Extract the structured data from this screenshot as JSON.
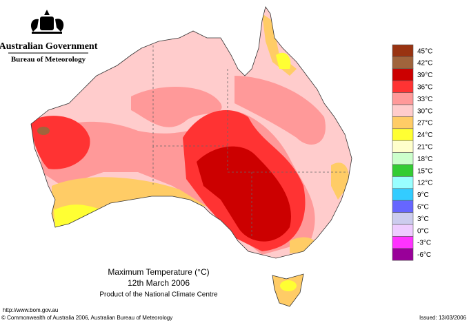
{
  "header": {
    "government": "Australian Government",
    "bureau": "Bureau of Meteorology"
  },
  "map": {
    "title": "Maximum Temperature (°C)",
    "date": "12th March 2006",
    "product": "Product of the National Climate Centre"
  },
  "legend": [
    {
      "label": "45°C",
      "color": "#993311"
    },
    {
      "label": "42°C",
      "color": "#a0643c"
    },
    {
      "label": "39°C",
      "color": "#cc0000"
    },
    {
      "label": "36°C",
      "color": "#ff3333"
    },
    {
      "label": "33°C",
      "color": "#ff9999"
    },
    {
      "label": "30°C",
      "color": "#ffcccc"
    },
    {
      "label": "27°C",
      "color": "#ffcc66"
    },
    {
      "label": "24°C",
      "color": "#ffff33"
    },
    {
      "label": "21°C",
      "color": "#ffffcc"
    },
    {
      "label": "18°C",
      "color": "#ccffcc"
    },
    {
      "label": "15°C",
      "color": "#33cc33"
    },
    {
      "label": "12°C",
      "color": "#99ffff"
    },
    {
      "label": "9°C",
      "color": "#33ccff"
    },
    {
      "label": "6°C",
      "color": "#6666ff"
    },
    {
      "label": "3°C",
      "color": "#ccccee"
    },
    {
      "label": "0°C",
      "color": "#eeccff"
    },
    {
      "label": "-3°C",
      "color": "#ff33ff"
    },
    {
      "label": "-6°C",
      "color": "#990099"
    }
  ],
  "footer": {
    "url": "http://www.bom.gov.au",
    "copyright": "© Commonwealth of Australia 2006, Australian Bureau of Meteorology",
    "issued": "Issued: 13/03/2006"
  }
}
